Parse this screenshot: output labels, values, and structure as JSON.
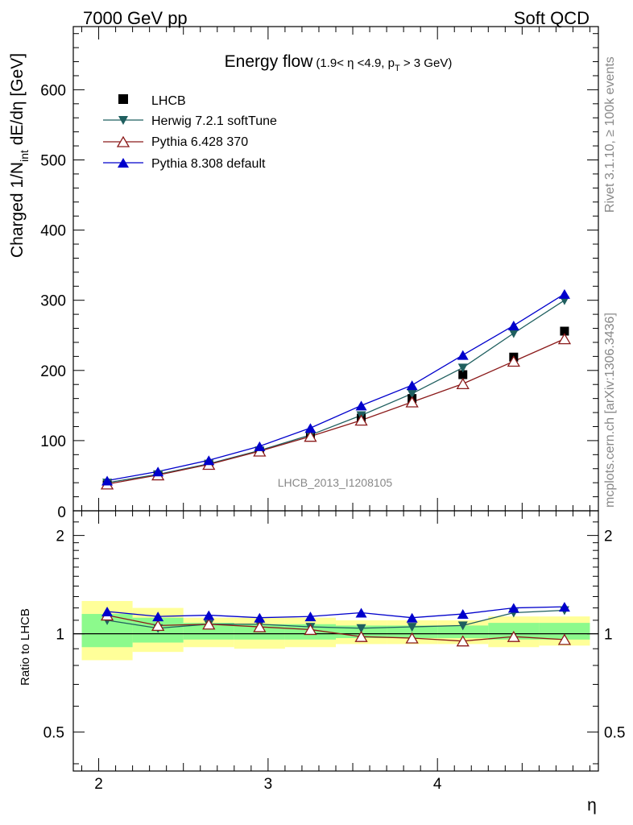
{
  "header": {
    "left": "7000 GeV pp",
    "right": "Soft QCD"
  },
  "side_labels": {
    "rivet": "Rivet 3.1.10, ≥ 100k events",
    "mcplots": "mcplots.cern.ch [arXiv:1306.3436]"
  },
  "watermark": "LHCB_2013_I1208105",
  "chart_data": [
    {
      "type": "line",
      "title_main": "Energy flow",
      "title_cut_a": "(1.9< η <4.9, p",
      "title_cut_sub": "T",
      "title_cut_b": " > 3 GeV)",
      "ylabel_a": "Charged 1/N",
      "ylabel_sub": "int",
      "ylabel_b": " dE/dη [GeV]",
      "xlim": [
        1.85,
        4.95
      ],
      "ylim": [
        0,
        690
      ],
      "yticks": [
        100,
        200,
        300,
        400,
        500,
        600
      ],
      "ytick_labels": [
        "100",
        "200",
        "300",
        "400",
        "500",
        "600"
      ],
      "bottom_label": "0",
      "x": [
        2.05,
        2.35,
        2.65,
        2.95,
        3.25,
        3.55,
        3.85,
        4.15,
        4.45,
        4.75
      ],
      "data_series": {
        "name": "LHCB",
        "values": [
          37,
          51,
          65,
          84,
          106,
          132,
          160,
          194,
          219,
          256
        ]
      },
      "series": [
        {
          "name": "Herwig 7.2.1 softTune",
          "color": "#1f5f5f",
          "marker": "triangle-down",
          "values": [
            40,
            52,
            67,
            86,
            108,
            136,
            167,
            204,
            253,
            300
          ]
        },
        {
          "name": "Pythia 6.428 370",
          "color": "#8b1a1a",
          "marker": "triangle-open",
          "values": [
            38,
            51,
            66,
            85,
            106,
            129,
            155,
            181,
            213,
            245
          ]
        },
        {
          "name": "Pythia 8.308 default",
          "color": "#0000cc",
          "marker": "triangle-up",
          "values": [
            43,
            56,
            72,
            92,
            118,
            150,
            179,
            222,
            264,
            309
          ]
        }
      ],
      "legend_position": "top-left"
    },
    {
      "type": "line",
      "ylabel": "Ratio to LHCB",
      "xlabel": "η",
      "xlim": [
        1.85,
        4.95
      ],
      "ylim": [
        0.38,
        2.38
      ],
      "log_y": true,
      "yticks": [
        0.5,
        1,
        2
      ],
      "ytick_labels": [
        "0.5",
        "1",
        "2"
      ],
      "xticks": [
        2,
        3,
        4
      ],
      "xtick_labels": [
        "2",
        "3",
        "4"
      ],
      "bin_edges": [
        1.9,
        2.2,
        2.5,
        2.8,
        3.1,
        3.4,
        3.7,
        4.0,
        4.3,
        4.6,
        4.9
      ],
      "band_inner": [
        [
          0.91,
          1.15
        ],
        [
          0.94,
          1.12
        ],
        [
          0.96,
          1.08
        ],
        [
          0.96,
          1.07
        ],
        [
          0.96,
          1.07
        ],
        [
          0.97,
          1.06
        ],
        [
          0.97,
          1.06
        ],
        [
          0.97,
          1.06
        ],
        [
          0.96,
          1.08
        ],
        [
          0.96,
          1.08
        ]
      ],
      "band_outer": [
        [
          0.83,
          1.26
        ],
        [
          0.88,
          1.2
        ],
        [
          0.91,
          1.12
        ],
        [
          0.9,
          1.12
        ],
        [
          0.91,
          1.12
        ],
        [
          0.93,
          1.1
        ],
        [
          0.93,
          1.1
        ],
        [
          0.93,
          1.1
        ],
        [
          0.91,
          1.13
        ],
        [
          0.92,
          1.13
        ]
      ],
      "series": [
        {
          "name": "Herwig 7.2.1 softTune",
          "color": "#1f5f5f",
          "marker": "triangle-down",
          "values": [
            1.1,
            1.04,
            1.07,
            1.07,
            1.05,
            1.04,
            1.05,
            1.06,
            1.16,
            1.18
          ]
        },
        {
          "name": "Pythia 6.428 370",
          "color": "#8b1a1a",
          "marker": "triangle-open",
          "values": [
            1.14,
            1.06,
            1.07,
            1.05,
            1.03,
            0.98,
            0.97,
            0.95,
            0.98,
            0.96
          ]
        },
        {
          "name": "Pythia 8.308 default",
          "color": "#0000cc",
          "marker": "triangle-up",
          "values": [
            1.17,
            1.13,
            1.14,
            1.12,
            1.13,
            1.16,
            1.12,
            1.15,
            1.2,
            1.21
          ]
        }
      ]
    }
  ]
}
